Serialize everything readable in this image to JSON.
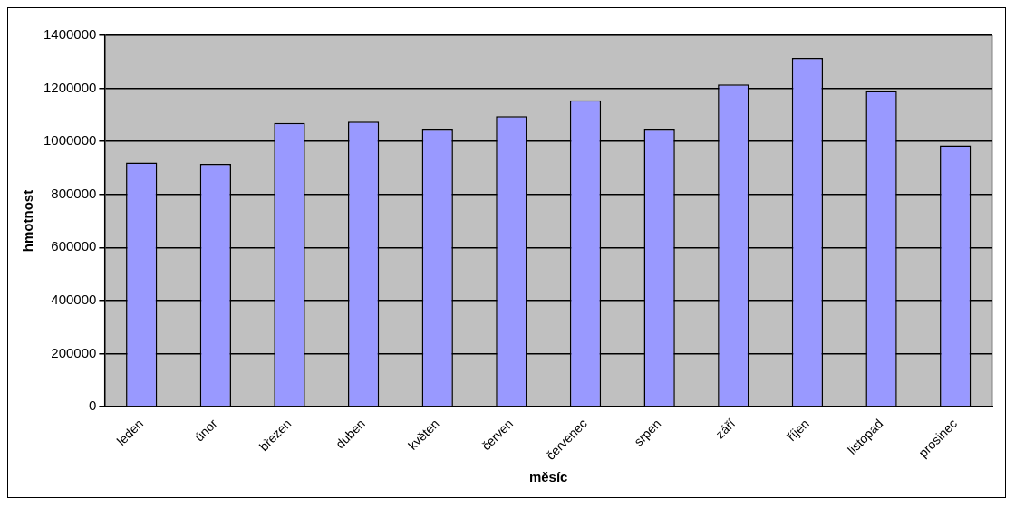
{
  "chart_data": {
    "type": "bar",
    "xlabel": "měsíc",
    "ylabel": "hmotnost",
    "categories": [
      "leden",
      "únor",
      "březen",
      "duben",
      "květen",
      "červen",
      "červenec",
      "srpen",
      "září",
      "říjen",
      "listopad",
      "prosinec"
    ],
    "values": [
      920000,
      915000,
      1070000,
      1075000,
      1045000,
      1095000,
      1155000,
      1045000,
      1215000,
      1315000,
      1190000,
      985000
    ],
    "color": "#9999ff",
    "ylim": [
      0,
      1400000
    ],
    "yticks": [
      0,
      200000,
      400000,
      600000,
      800000,
      1000000,
      1200000,
      1400000
    ],
    "grid": "y"
  }
}
